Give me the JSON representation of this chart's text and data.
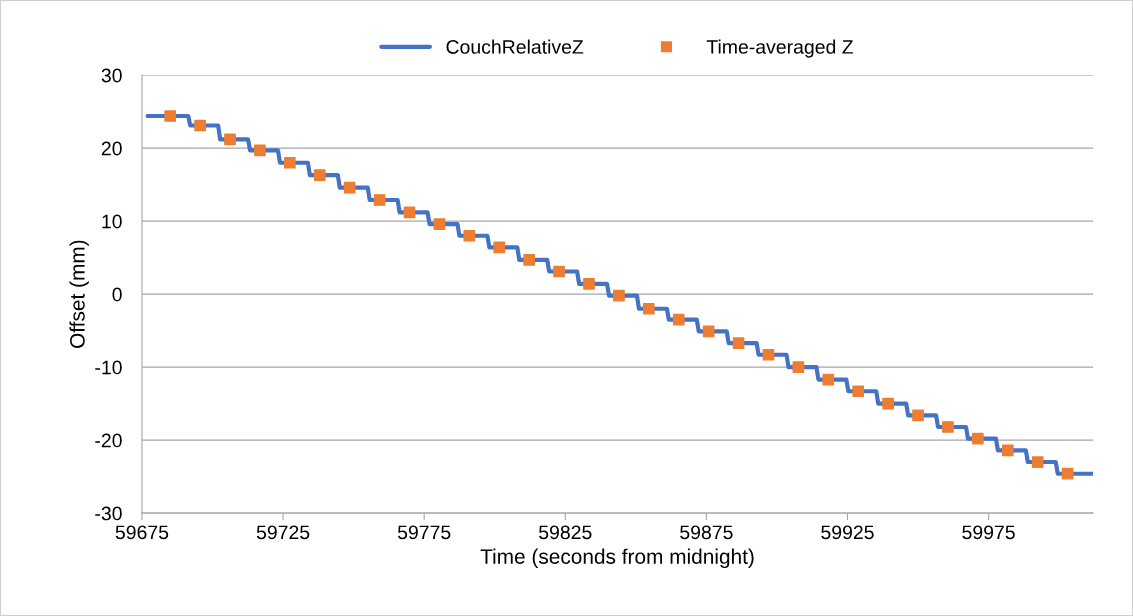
{
  "chart_data": {
    "type": "line",
    "xlabel": "Time (seconds from midnight)",
    "ylabel": "Offset (mm)",
    "xlim": [
      59675,
      60012
    ],
    "xticks": [
      59675,
      59725,
      59775,
      59825,
      59875,
      59925,
      59975
    ],
    "ylim": [
      -30,
      30
    ],
    "yticks": [
      -30,
      -20,
      -10,
      0,
      10,
      20,
      30
    ],
    "grid": "y",
    "legend": "top",
    "series": [
      {
        "name": "CouchRelativeZ",
        "color": "#4472c4",
        "marker": "none",
        "line_style": "solid",
        "x": [
          59677,
          59681.5,
          59691.4,
          59692.1,
          59702.0,
          59702.7,
          59712.6,
          59713.3,
          59723.2,
          59723.9,
          59733.8,
          59734.5,
          59744.4,
          59745.1,
          59755.0,
          59755.7,
          59765.6,
          59766.3,
          59776.2,
          59776.9,
          59786.8,
          59787.5,
          59797.4,
          59798.1,
          59808.0,
          59808.7,
          59818.6,
          59819.3,
          59829.2,
          59829.9,
          59839.8,
          59840.5,
          59850.4,
          59851.1,
          59861.0,
          59861.7,
          59871.6,
          59872.3,
          59882.2,
          59882.9,
          59892.8,
          59893.5,
          59903.4,
          59904.1,
          59914.0,
          59914.7,
          59924.6,
          59925.3,
          59935.2,
          59935.9,
          59945.8,
          59946.5,
          59956.4,
          59957.1,
          59967.0,
          59967.7,
          59977.6,
          59978.3,
          59988.2,
          59988.9,
          59998.8,
          59999.5,
          60012
        ],
        "values": [
          24.4,
          24.4,
          24.4,
          23.1,
          23.1,
          21.2,
          21.2,
          19.7,
          19.7,
          18.0,
          18.0,
          16.3,
          16.3,
          14.6,
          14.6,
          12.9,
          12.9,
          11.2,
          11.2,
          9.6,
          9.6,
          8.0,
          8.0,
          6.4,
          6.4,
          4.7,
          4.7,
          3.1,
          3.1,
          1.4,
          1.4,
          -0.2,
          -0.2,
          -2.0,
          -2.0,
          -3.5,
          -3.5,
          -5.1,
          -5.1,
          -6.7,
          -6.7,
          -8.3,
          -8.3,
          -10.0,
          -10.0,
          -11.7,
          -11.7,
          -13.3,
          -13.3,
          -15.0,
          -15.0,
          -16.6,
          -16.6,
          -18.2,
          -18.2,
          -19.8,
          -19.8,
          -21.4,
          -21.4,
          -23.0,
          -23.0,
          -24.6,
          -24.6
        ]
      },
      {
        "name": "Time-averaged Z",
        "type": "scatter",
        "color": "#ed7d31",
        "marker": "square",
        "x": [
          59685.0,
          59695.6,
          59706.2,
          59716.8,
          59727.4,
          59738.0,
          59748.6,
          59759.2,
          59769.8,
          59780.4,
          59791.0,
          59801.6,
          59812.2,
          59822.8,
          59833.4,
          59844.0,
          59854.6,
          59865.2,
          59875.8,
          59886.4,
          59897.0,
          59907.6,
          59918.2,
          59928.8,
          59939.4,
          59950.0,
          59960.6,
          59971.2,
          59981.8,
          59992.4,
          60003.0
        ],
        "values": [
          24.4,
          23.1,
          21.2,
          19.7,
          18.0,
          16.3,
          14.6,
          12.9,
          11.2,
          9.6,
          8.0,
          6.4,
          4.7,
          3.1,
          1.4,
          -0.2,
          -2.0,
          -3.5,
          -5.1,
          -6.7,
          -8.3,
          -10.0,
          -11.7,
          -13.3,
          -15.0,
          -16.6,
          -18.2,
          -19.8,
          -21.4,
          -23.0,
          -24.6
        ]
      }
    ]
  }
}
